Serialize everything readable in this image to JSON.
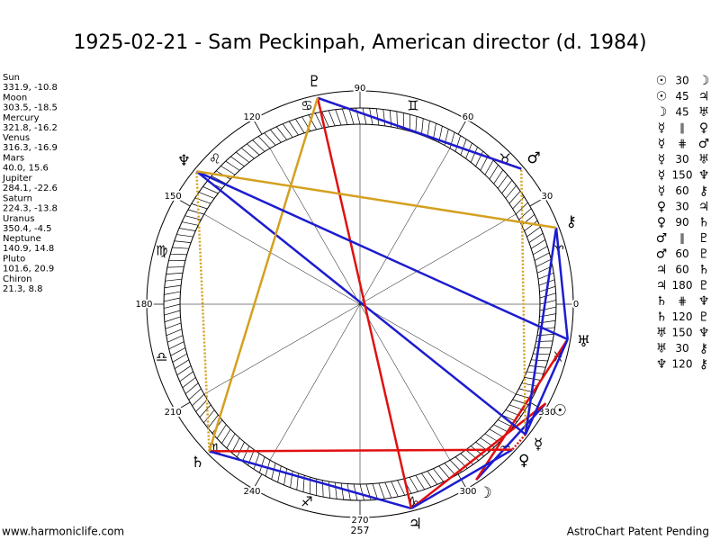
{
  "title": "1925-02-21 - Sam Peckinpah, American director (d. 1984)",
  "planets": [
    {
      "name": "Sun",
      "glyph": "☉",
      "position": "331.9, -10.8"
    },
    {
      "name": "Moon",
      "glyph": "☽",
      "position": "303.5, -18.5"
    },
    {
      "name": "Mercury",
      "glyph": "☿",
      "position": "321.8, -16.2"
    },
    {
      "name": "Venus",
      "glyph": "♀",
      "position": "316.3, -16.9"
    },
    {
      "name": "Mars",
      "glyph": "♂",
      "position": "40.0, 15.6"
    },
    {
      "name": "Jupiter",
      "glyph": "♃",
      "position": "284.1, -22.6"
    },
    {
      "name": "Saturn",
      "glyph": "♄",
      "position": "224.3, -13.8"
    },
    {
      "name": "Uranus",
      "glyph": "♅",
      "position": "350.4, -4.5"
    },
    {
      "name": "Neptune",
      "glyph": "♆",
      "position": "140.9, 14.8"
    },
    {
      "name": "Pluto",
      "glyph": "♇",
      "position": "101.6, 20.9"
    },
    {
      "name": "Chiron",
      "glyph": "⚷",
      "position": "21.3, 8.8"
    }
  ],
  "signs": [
    "♈",
    "♉",
    "♊",
    "♋",
    "♌",
    "♍",
    "♎",
    "♏",
    "♐",
    "♑",
    "♒",
    "♓"
  ],
  "degree_labels": [
    "0",
    "30",
    "60",
    "90",
    "120",
    "150",
    "180",
    "210",
    "240",
    "270",
    "300",
    "330"
  ],
  "ascendant": "257",
  "aspects": [
    {
      "p1": "☉",
      "aspect": "30",
      "p2": "☽",
      "color": "#1c1cd0",
      "dotted": false
    },
    {
      "p1": "☉",
      "aspect": "45",
      "p2": "♃",
      "color": "#e01010",
      "dotted": false
    },
    {
      "p1": "☽",
      "aspect": "45",
      "p2": "♅",
      "color": "#e01010",
      "dotted": false
    },
    {
      "p1": "☿",
      "aspect": "∥",
      "p2": "♀",
      "color": "#e01010",
      "dotted": true
    },
    {
      "p1": "☿",
      "aspect": "⋕",
      "p2": "♂",
      "color": "#d4a020",
      "dotted": true
    },
    {
      "p1": "☿",
      "aspect": "30",
      "p2": "♅",
      "color": "#1c1cd0",
      "dotted": false
    },
    {
      "p1": "☿",
      "aspect": "150",
      "p2": "♆",
      "color": "#1c1cd0",
      "dotted": false
    },
    {
      "p1": "☿",
      "aspect": "60",
      "p2": "⚷",
      "color": "#1c1cd0",
      "dotted": false
    },
    {
      "p1": "♀",
      "aspect": "30",
      "p2": "♃",
      "color": "#1c1cd0",
      "dotted": false
    },
    {
      "p1": "♀",
      "aspect": "90",
      "p2": "♄",
      "color": "#e01010",
      "dotted": false
    },
    {
      "p1": "♂",
      "aspect": "∥",
      "p2": "♇",
      "color": "#e01010",
      "dotted": true
    },
    {
      "p1": "♂",
      "aspect": "60",
      "p2": "♇",
      "color": "#1c1cd0",
      "dotted": false
    },
    {
      "p1": "♃",
      "aspect": "60",
      "p2": "♄",
      "color": "#1c1cd0",
      "dotted": false
    },
    {
      "p1": "♃",
      "aspect": "180",
      "p2": "♇",
      "color": "#e01010",
      "dotted": false
    },
    {
      "p1": "♄",
      "aspect": "⋕",
      "p2": "♆",
      "color": "#d4a020",
      "dotted": true
    },
    {
      "p1": "♄",
      "aspect": "120",
      "p2": "♇",
      "color": "#d4a020",
      "dotted": false
    },
    {
      "p1": "♅",
      "aspect": "150",
      "p2": "♆",
      "color": "#1c1cd0",
      "dotted": false
    },
    {
      "p1": "♅",
      "aspect": "30",
      "p2": "⚷",
      "color": "#1c1cd0",
      "dotted": false
    },
    {
      "p1": "♆",
      "aspect": "120",
      "p2": "⚷",
      "color": "#d4a020",
      "dotted": false
    }
  ],
  "footer": {
    "left": "www.harmoniclife.com",
    "right": "AstroChart Patent Pending"
  }
}
